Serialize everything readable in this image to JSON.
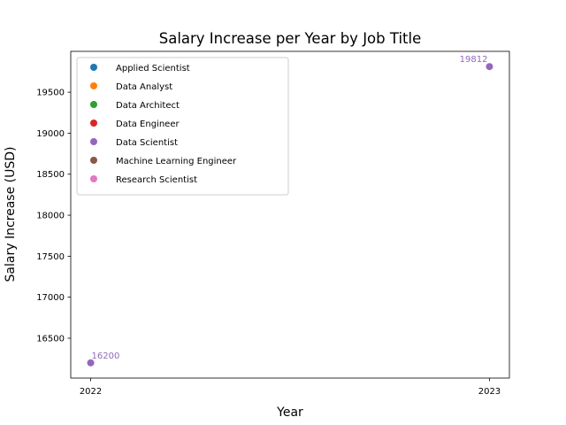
{
  "chart_data": {
    "type": "scatter",
    "title": "Salary Increase per Year by Job Title",
    "xlabel": "Year",
    "ylabel": "Salary Increase (USD)",
    "x_ticks": [
      "2022",
      "2023"
    ],
    "y_ticks": [
      16500,
      17000,
      17500,
      18000,
      18500,
      19000,
      19500
    ],
    "xlim": [
      2021.95,
      2023.05
    ],
    "ylim": [
      16014,
      19998
    ],
    "grid": false,
    "legend_position": "top-left",
    "series": [
      {
        "name": "Applied Scientist",
        "color": "#1f77b4",
        "points": []
      },
      {
        "name": "Data Analyst",
        "color": "#ff7f0e",
        "points": []
      },
      {
        "name": "Data Architect",
        "color": "#2ca02c",
        "points": []
      },
      {
        "name": "Data Engineer",
        "color": "#d62728",
        "points": []
      },
      {
        "name": "Data Scientist",
        "color": "#9467bd",
        "points": [
          {
            "x": 2022,
            "y": 16200,
            "label": "16200"
          },
          {
            "x": 2023,
            "y": 19812,
            "label": "19812"
          }
        ]
      },
      {
        "name": "Machine Learning Engineer",
        "color": "#8c564b",
        "points": []
      },
      {
        "name": "Research Scientist",
        "color": "#e377c2",
        "points": []
      }
    ]
  }
}
